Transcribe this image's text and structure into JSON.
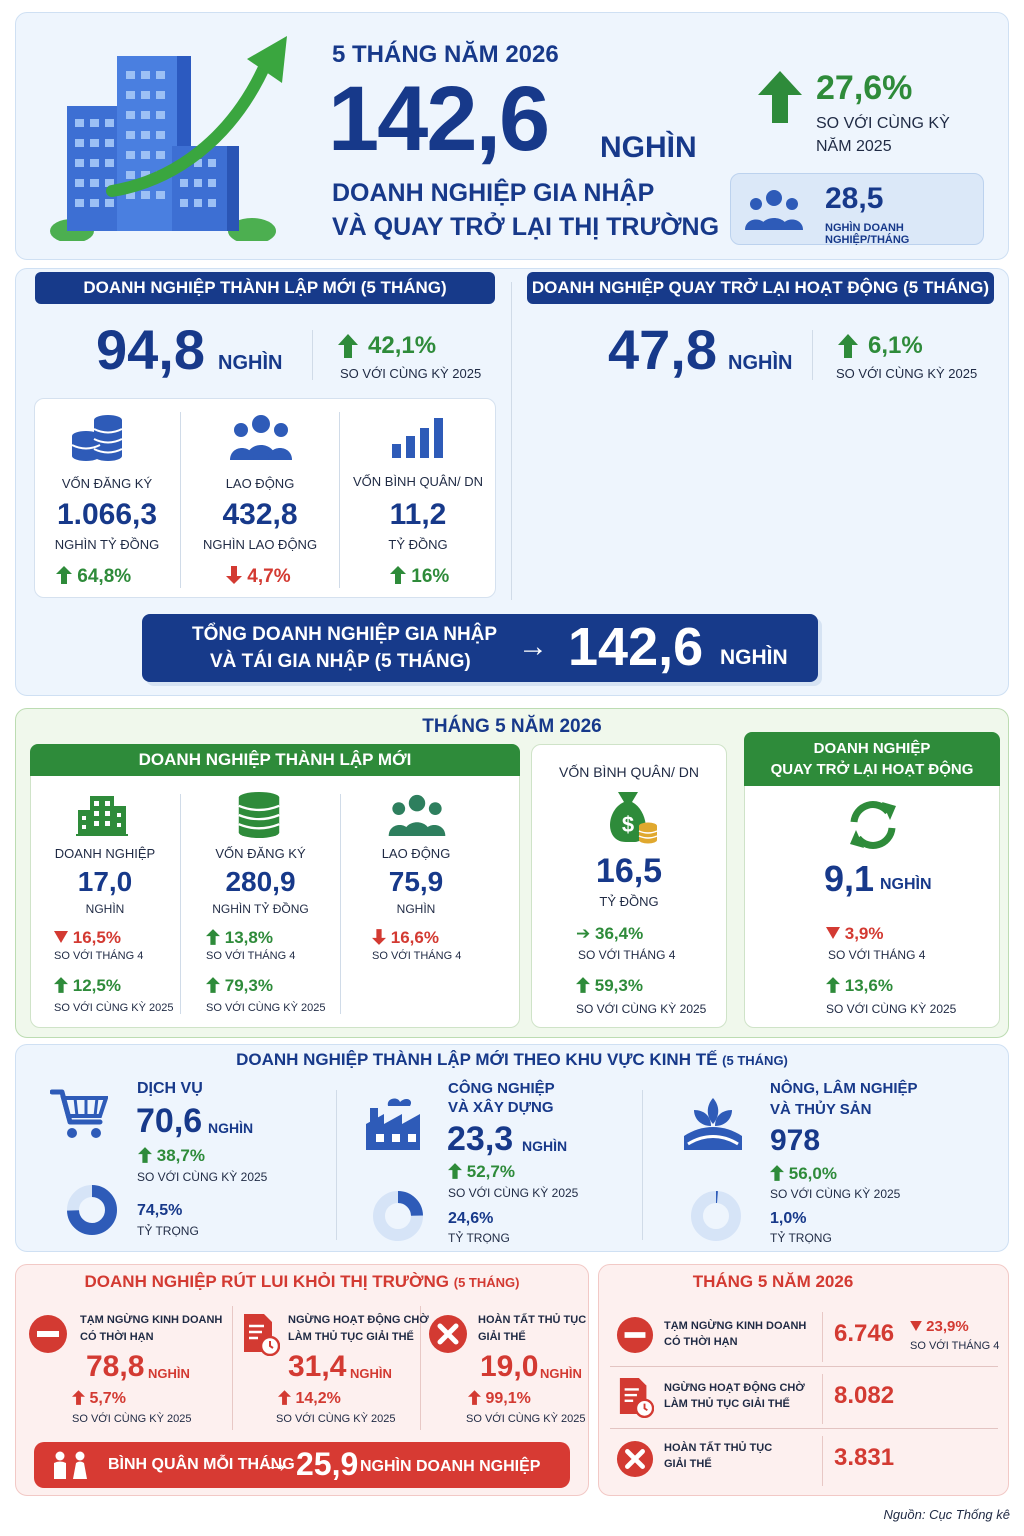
{
  "hero": {
    "period": "5 THÁNG NĂM 2026",
    "value": "142,6",
    "unit": "NGHÌN",
    "desc1": "DOANH NGHIỆP GIA NHẬP",
    "desc2": "VÀ QUAY TRỞ LẠI THỊ TRƯỜNG",
    "growth": "27,6%",
    "growth_label1": "SO VỚI CÙNG KỲ",
    "growth_label2": "NĂM 2025",
    "monthly_value": "28,5",
    "monthly_label": "NGHÌN DOANH NGHIỆP/THÁNG"
  },
  "new_5m": {
    "header": "DOANH NGHIỆP THÀNH LẬP MỚI (5 THÁNG)",
    "value": "94,8",
    "unit": "NGHÌN",
    "growth": "42,1%",
    "growth_label": "SO VỚI CÙNG KỲ 2025",
    "stats": [
      {
        "label": "VỐN ĐĂNG KÝ",
        "value": "1.066,3",
        "unit": "NGHÌN TỶ ĐỒNG",
        "change": "64,8%",
        "dir": "up"
      },
      {
        "label": "LAO ĐỘNG",
        "value": "432,8",
        "unit": "NGHÌN LAO ĐỘNG",
        "change": "4,7%",
        "dir": "down"
      },
      {
        "label": "VỐN BÌNH QUÂN/ DN",
        "value": "11,2",
        "unit": "TỶ ĐỒNG",
        "change": "16%",
        "dir": "up"
      }
    ]
  },
  "return_5m": {
    "header": "DOANH NGHIỆP QUAY TRỞ LẠI HOẠT ĐỘNG (5 THÁNG)",
    "value": "47,8",
    "unit": "NGHÌN",
    "growth": "6,1%",
    "growth_label": "SO VỚI CÙNG KỲ 2025"
  },
  "total_bar": {
    "line1": "TỔNG DOANH NGHIỆP GIA NHẬP",
    "line2": "VÀ TÁI GIA NHẬP (5 THÁNG)",
    "arrow": "→",
    "value": "142,6",
    "unit": "NGHÌN"
  },
  "month5": {
    "title": "THÁNG 5 NĂM 2026",
    "new_header": "DOANH NGHIỆP THÀNH LẬP MỚI",
    "items": [
      {
        "label": "DOANH NGHIỆP",
        "value": "17,0",
        "unit": "NGHÌN",
        "c1": "16,5%",
        "c1_dir": "down",
        "c1_label": "SO VỚI THÁNG 4",
        "c2": "12,5%",
        "c2_label": "SO VỚI CÙNG KỲ 2025"
      },
      {
        "label": "VỐN ĐĂNG KÝ",
        "value": "280,9",
        "unit": "NGHÌN TỶ ĐỒNG",
        "c1": "13,8%",
        "c1_dir": "up",
        "c1_label": "SO VỚI THÁNG 4",
        "c2": "79,3%",
        "c2_label": "SO VỚI CÙNG KỲ 2025"
      },
      {
        "label": "LAO ĐỘNG",
        "value": "75,9",
        "unit": "NGHÌN",
        "c1": "16,6%",
        "c1_dir": "down",
        "c1_label": "SO VỚI THÁNG 4"
      }
    ],
    "avg": {
      "label": "VỐN BÌNH QUÂN/ DN",
      "value": "16,5",
      "unit": "TỶ ĐỒNG",
      "c1": "36,4%",
      "c1_label": "SO VỚI THÁNG 4",
      "c2": "59,3%",
      "c2_label": "SO VỚI CÙNG KỲ 2025"
    },
    "return": {
      "header1": "DOANH NGHIỆP",
      "header2": "QUAY TRỞ LẠI HOẠT ĐỘNG",
      "value": "9,1",
      "unit": "NGHÌN",
      "c1": "3,9%",
      "c1_label": "SO VỚI THÁNG 4",
      "c2": "13,6%",
      "c2_label": "SO VỚI CÙNG KỲ 2025"
    }
  },
  "sectors": {
    "title": "DOANH NGHIỆP THÀNH LẬP MỚI THEO KHU VỰC KINH TẾ",
    "title_suffix": "(5 THÁNG)",
    "items": [
      {
        "name1": "DỊCH VỤ",
        "name2": "",
        "value": "70,6",
        "unit": "NGHÌN",
        "growth": "38,7%",
        "growth_label": "SO VỚI CÙNG KỲ 2025",
        "share": "74,5%",
        "share_label": "TỶ TRỌNG",
        "share_value": 74.5
      },
      {
        "name1": "CÔNG NGHIỆP",
        "name2": "VÀ XÂY DỰNG",
        "value": "23,3",
        "unit": "NGHÌN",
        "growth": "52,7%",
        "growth_label": "SO VỚI CÙNG KỲ 2025",
        "share": "24,6%",
        "share_label": "TỶ TRỌNG",
        "share_value": 24.6
      },
      {
        "name1": "NÔNG, LÂM NGHIỆP",
        "name2": "VÀ THỦY SẢN",
        "value": "978",
        "unit": "",
        "growth": "56,0%",
        "growth_label": "SO VỚI CÙNG KỲ 2025",
        "share": "1,0%",
        "share_label": "TỶ TRỌNG",
        "share_value": 1.0
      }
    ]
  },
  "exit": {
    "title": "DOANH NGHIỆP RÚT LUI KHỎI THỊ TRƯỜNG",
    "title_suffix": "(5 THÁNG)",
    "items": [
      {
        "label1": "TẠM NGỪNG KINH DOANH",
        "label2": "CÓ THỜI HẠN",
        "value": "78,8",
        "unit": "NGHÌN",
        "growth": "5,7%",
        "growth_label": "SO VỚI CÙNG KỲ 2025"
      },
      {
        "label1": "NGỪNG HOẠT ĐỘNG CHỜ",
        "label2": "LÀM THỦ TỤC GIẢI THỂ",
        "value": "31,4",
        "unit": "NGHÌN",
        "growth": "14,2%",
        "growth_label": "SO VỚI CÙNG KỲ 2025"
      },
      {
        "label1": "HOÀN TẤT THỦ TỤC",
        "label2": "GIẢI THỂ",
        "value": "19,0",
        "unit": "NGHÌN",
        "growth": "99,1%",
        "growth_label": "SO VỚI CÙNG KỲ 2025"
      }
    ],
    "avg_label": "BÌNH QUÂN MỖI THÁNG",
    "avg_arrow": "→",
    "avg_value": "25,9",
    "avg_unit": "NGHÌN DOANH NGHIỆP"
  },
  "exit_month5": {
    "title": "THÁNG 5 NĂM 2026",
    "rows": [
      {
        "label1": "TẠM NGỪNG KINH DOANH",
        "label2": "CÓ THỜI HẠN",
        "value": "6.746",
        "change": "23,9%",
        "change_label": "SO VỚI THÁNG 4"
      },
      {
        "label1": "NGỪNG HOẠT ĐỘNG CHỜ",
        "label2": "LÀM THỦ TỤC GIẢI THỂ",
        "value": "8.082"
      },
      {
        "label1": "HOÀN TẤT THỦ TỤC",
        "label2": "GIẢI THỂ",
        "value": "3.831"
      }
    ]
  },
  "source": "Nguồn: Cục Thống kê",
  "colors": {
    "navy": "#17398a",
    "green": "#2e8b3a",
    "red": "#d33a32"
  }
}
